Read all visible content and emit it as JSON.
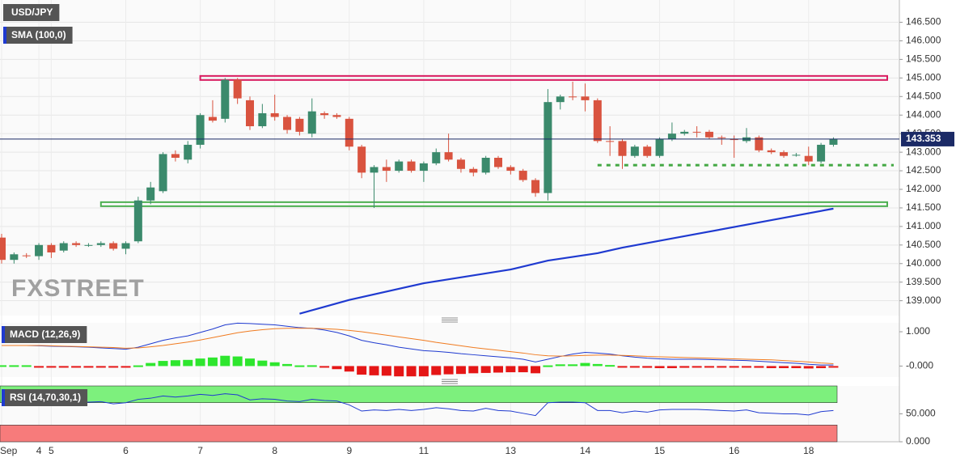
{
  "chart_data": [
    {
      "type": "candlestick",
      "title": "USD/JPY",
      "categories": [
        "Sep",
        null,
        null,
        "4",
        "5",
        null,
        null,
        null,
        null,
        null,
        "6",
        null,
        null,
        null,
        null,
        null,
        "7",
        null,
        null,
        null,
        null,
        null,
        "8",
        null,
        null,
        null,
        null,
        null,
        "9",
        null,
        null,
        null,
        null,
        null,
        "11",
        null,
        null,
        null,
        null,
        null,
        null,
        "13",
        null,
        null,
        null,
        null,
        null,
        "14",
        null,
        null,
        null,
        null,
        null,
        "15",
        null,
        null,
        null,
        null,
        null,
        "16",
        null,
        null,
        null,
        null,
        null,
        "18",
        null,
        null
      ],
      "open": [
        140.7,
        140.1,
        140.22,
        140.2,
        140.5,
        140.35,
        140.55,
        140.5,
        140.5,
        140.55,
        140.4,
        140.6,
        141.7,
        141.95,
        142.95,
        142.8,
        143.2,
        143.95,
        143.9,
        144.95,
        144.4,
        143.7,
        144.05,
        143.95,
        143.9,
        143.5,
        144.05,
        144.0,
        143.9,
        143.15,
        142.45,
        142.6,
        142.5,
        142.75,
        142.5,
        142.7,
        143.0,
        142.8,
        142.55,
        142.45,
        142.85,
        142.6,
        142.5,
        142.25,
        141.9,
        144.35,
        144.5,
        144.5,
        144.4,
        143.3,
        143.3,
        142.9,
        143.15,
        142.9,
        143.35,
        143.5,
        143.55,
        143.55,
        143.4,
        143.35,
        143.3,
        143.4,
        143.05,
        143.0,
        142.92,
        142.9,
        142.75,
        143.2
      ],
      "high": [
        140.8,
        140.3,
        140.28,
        140.55,
        140.55,
        140.6,
        140.6,
        140.55,
        140.6,
        140.6,
        140.6,
        141.8,
        142.2,
        143.0,
        143.05,
        143.3,
        144.05,
        144.4,
        145.0,
        145.0,
        144.5,
        144.3,
        144.55,
        144.0,
        143.95,
        144.45,
        144.1,
        144.05,
        143.95,
        143.2,
        142.65,
        142.8,
        142.8,
        142.8,
        142.75,
        143.1,
        143.5,
        142.85,
        142.6,
        142.9,
        142.9,
        142.65,
        142.55,
        142.3,
        144.7,
        144.55,
        144.9,
        144.85,
        144.45,
        143.7,
        143.35,
        143.2,
        143.2,
        143.4,
        143.8,
        143.6,
        143.7,
        143.6,
        143.45,
        143.45,
        143.65,
        143.45,
        143.1,
        143.05,
        142.98,
        143.15,
        143.25,
        143.4
      ],
      "low": [
        140.0,
        140.0,
        140.15,
        140.1,
        140.15,
        140.3,
        140.45,
        140.45,
        140.45,
        140.35,
        140.25,
        140.55,
        141.6,
        141.9,
        142.75,
        142.7,
        143.1,
        143.8,
        143.8,
        144.3,
        143.6,
        143.65,
        143.85,
        143.5,
        143.45,
        143.4,
        143.9,
        143.9,
        143.05,
        142.3,
        141.5,
        142.2,
        142.45,
        142.45,
        142.2,
        142.65,
        142.75,
        142.45,
        142.35,
        142.4,
        142.55,
        142.4,
        142.2,
        141.8,
        141.7,
        144.15,
        144.4,
        144.1,
        143.25,
        142.9,
        142.55,
        142.85,
        142.85,
        142.85,
        143.3,
        143.45,
        143.4,
        143.35,
        143.2,
        142.85,
        143.25,
        143.0,
        142.95,
        142.85,
        142.88,
        142.65,
        142.7,
        143.15
      ],
      "close": [
        140.1,
        140.25,
        140.2,
        140.5,
        140.3,
        140.55,
        140.5,
        140.5,
        140.55,
        140.4,
        140.55,
        141.7,
        142.05,
        142.95,
        142.85,
        143.2,
        144.0,
        143.85,
        144.95,
        144.45,
        143.7,
        144.05,
        143.95,
        143.6,
        143.55,
        144.1,
        144.0,
        143.95,
        143.15,
        142.45,
        142.6,
        142.5,
        142.75,
        142.5,
        142.7,
        143.0,
        142.8,
        142.55,
        142.45,
        142.85,
        142.6,
        142.5,
        142.25,
        141.9,
        144.35,
        144.5,
        144.48,
        144.4,
        143.3,
        143.28,
        142.9,
        143.15,
        142.9,
        143.35,
        143.5,
        143.55,
        143.53,
        143.4,
        143.38,
        143.33,
        143.4,
        143.05,
        143.0,
        142.9,
        142.93,
        142.75,
        143.2,
        143.35
      ],
      "up_color": "#3b8a6c",
      "down_color": "#d9533f",
      "sma": {
        "name": "SMA (100,0)",
        "color": "#1f3ad0",
        "x": [
          24,
          28,
          34,
          41,
          44,
          48,
          50,
          56,
          62,
          67
        ],
        "values": [
          138.65,
          139.02,
          139.47,
          139.84,
          140.08,
          140.28,
          140.43,
          140.8,
          141.17,
          141.48
        ]
      },
      "levels": [
        {
          "value": 145.0,
          "from": 16,
          "color": "#d81b60",
          "style": "box"
        },
        {
          "value": 141.6,
          "from": 8,
          "color": "#4caf50",
          "style": "box"
        },
        {
          "value": 142.65,
          "from": 48,
          "color": "#43a843",
          "style": "dotted"
        }
      ],
      "last_price": 143.353,
      "last_price_color": "#1b2a66",
      "watermark": "FXSTREET",
      "ylim": [
        138.6,
        147.1
      ],
      "yticks": [
        {
          "value": 139.0,
          "label": "139.000"
        },
        {
          "value": 139.5,
          "label": "139.500"
        },
        {
          "value": 140.0,
          "label": "140.000"
        },
        {
          "value": 140.5,
          "label": "140.500"
        },
        {
          "value": 141.0,
          "label": "141.000"
        },
        {
          "value": 141.5,
          "label": "141.500"
        },
        {
          "value": 142.0,
          "label": "142.000"
        },
        {
          "value": 142.5,
          "label": "142.500"
        },
        {
          "value": 143.0,
          "label": "143.000"
        },
        {
          "value": 143.5,
          "label": "143.500"
        },
        {
          "value": 144.0,
          "label": "144.000"
        },
        {
          "value": 144.5,
          "label": "144.500"
        },
        {
          "value": 145.0,
          "label": "145.000"
        },
        {
          "value": 145.5,
          "label": "145.500"
        },
        {
          "value": 146.0,
          "label": "146.000"
        },
        {
          "value": 146.5,
          "label": "146.500"
        }
      ],
      "grid": true
    },
    {
      "type": "line",
      "title": "MACD (12,26,9)",
      "series": [
        {
          "type": "bar",
          "up_color": "#2ee62e",
          "down_color": "#e51616",
          "values": [
            0,
            0,
            0,
            -0.01,
            -0.01,
            -0.01,
            -0.01,
            -0.01,
            -0.02,
            -0.03,
            -0.03,
            0.02,
            0.09,
            0.15,
            0.17,
            0.18,
            0.22,
            0.25,
            0.3,
            0.28,
            0.22,
            0.16,
            0.11,
            0.06,
            0.02,
            0,
            -0.04,
            -0.09,
            -0.16,
            -0.25,
            -0.27,
            -0.28,
            -0.3,
            -0.3,
            -0.3,
            -0.26,
            -0.24,
            -0.23,
            -0.21,
            -0.2,
            -0.19,
            -0.18,
            -0.18,
            -0.21,
            0.02,
            0.05,
            0.05,
            0.09,
            0.06,
            0.03,
            -0.01,
            -0.04,
            -0.05,
            -0.06,
            -0.06,
            -0.05,
            -0.04,
            -0.04,
            -0.04,
            -0.04,
            -0.04,
            -0.05,
            -0.06,
            -0.06,
            -0.06,
            -0.07,
            -0.06,
            -0.04
          ]
        },
        {
          "type": "line",
          "color": "#1f3ad0",
          "values": [
            0.6,
            0.6,
            0.6,
            0.59,
            0.58,
            0.57,
            0.56,
            0.55,
            0.53,
            0.51,
            0.49,
            0.55,
            0.65,
            0.75,
            0.82,
            0.88,
            0.98,
            1.08,
            1.2,
            1.25,
            1.24,
            1.22,
            1.2,
            1.16,
            1.12,
            1.1,
            1.05,
            0.98,
            0.88,
            0.75,
            0.68,
            0.62,
            0.55,
            0.5,
            0.45,
            0.43,
            0.4,
            0.36,
            0.33,
            0.3,
            0.27,
            0.24,
            0.2,
            0.12,
            0.2,
            0.28,
            0.35,
            0.4,
            0.38,
            0.35,
            0.3,
            0.26,
            0.23,
            0.21,
            0.2,
            0.2,
            0.2,
            0.19,
            0.18,
            0.17,
            0.16,
            0.14,
            0.12,
            0.1,
            0.08,
            0.05,
            0.03,
            0.03
          ]
        },
        {
          "type": "line",
          "color": "#f07b20",
          "values": [
            0.6,
            0.6,
            0.6,
            0.6,
            0.59,
            0.58,
            0.57,
            0.56,
            0.55,
            0.54,
            0.52,
            0.53,
            0.56,
            0.6,
            0.65,
            0.7,
            0.76,
            0.83,
            0.9,
            0.97,
            1.02,
            1.06,
            1.09,
            1.1,
            1.1,
            1.1,
            1.09,
            1.07,
            1.04,
            1.0,
            0.95,
            0.9,
            0.85,
            0.8,
            0.75,
            0.69,
            0.64,
            0.59,
            0.54,
            0.5,
            0.46,
            0.42,
            0.38,
            0.33,
            0.3,
            0.29,
            0.3,
            0.31,
            0.32,
            0.32,
            0.31,
            0.3,
            0.28,
            0.27,
            0.26,
            0.25,
            0.24,
            0.23,
            0.22,
            0.21,
            0.2,
            0.19,
            0.18,
            0.16,
            0.14,
            0.12,
            0.09,
            0.07
          ]
        }
      ],
      "ylim": [
        -0.32,
        1.26
      ],
      "yticks": [
        {
          "value": 1,
          "label": "1.000"
        },
        {
          "value": 0,
          "label": "-0.000"
        }
      ]
    },
    {
      "type": "line",
      "title": "RSI (14,70,30,1)",
      "upper_band": 70,
      "lower_band": 30,
      "upper_color": "#7df07d",
      "lower_color": "#f77b7b",
      "series": [
        {
          "type": "line",
          "color": "#1f3ad0",
          "values": [
            70,
            66,
            67,
            70,
            68,
            70,
            71,
            71,
            72,
            68,
            70,
            76,
            78,
            82,
            80,
            82,
            85,
            83,
            86,
            84,
            75,
            77,
            76,
            73,
            72,
            76,
            74,
            73,
            66,
            55,
            57,
            56,
            58,
            56,
            58,
            61,
            59,
            56,
            55,
            60,
            56,
            55,
            51,
            47,
            70,
            71,
            71,
            70,
            56,
            56,
            52,
            55,
            53,
            57,
            58,
            58,
            58,
            57,
            56,
            55,
            57,
            52,
            51,
            50,
            50,
            48,
            54,
            56
          ]
        }
      ],
      "ylim": [
        0,
        100
      ],
      "yticks": [
        {
          "value": 50,
          "label": "50.000"
        },
        {
          "value": 0,
          "label": "0.000"
        }
      ]
    }
  ]
}
